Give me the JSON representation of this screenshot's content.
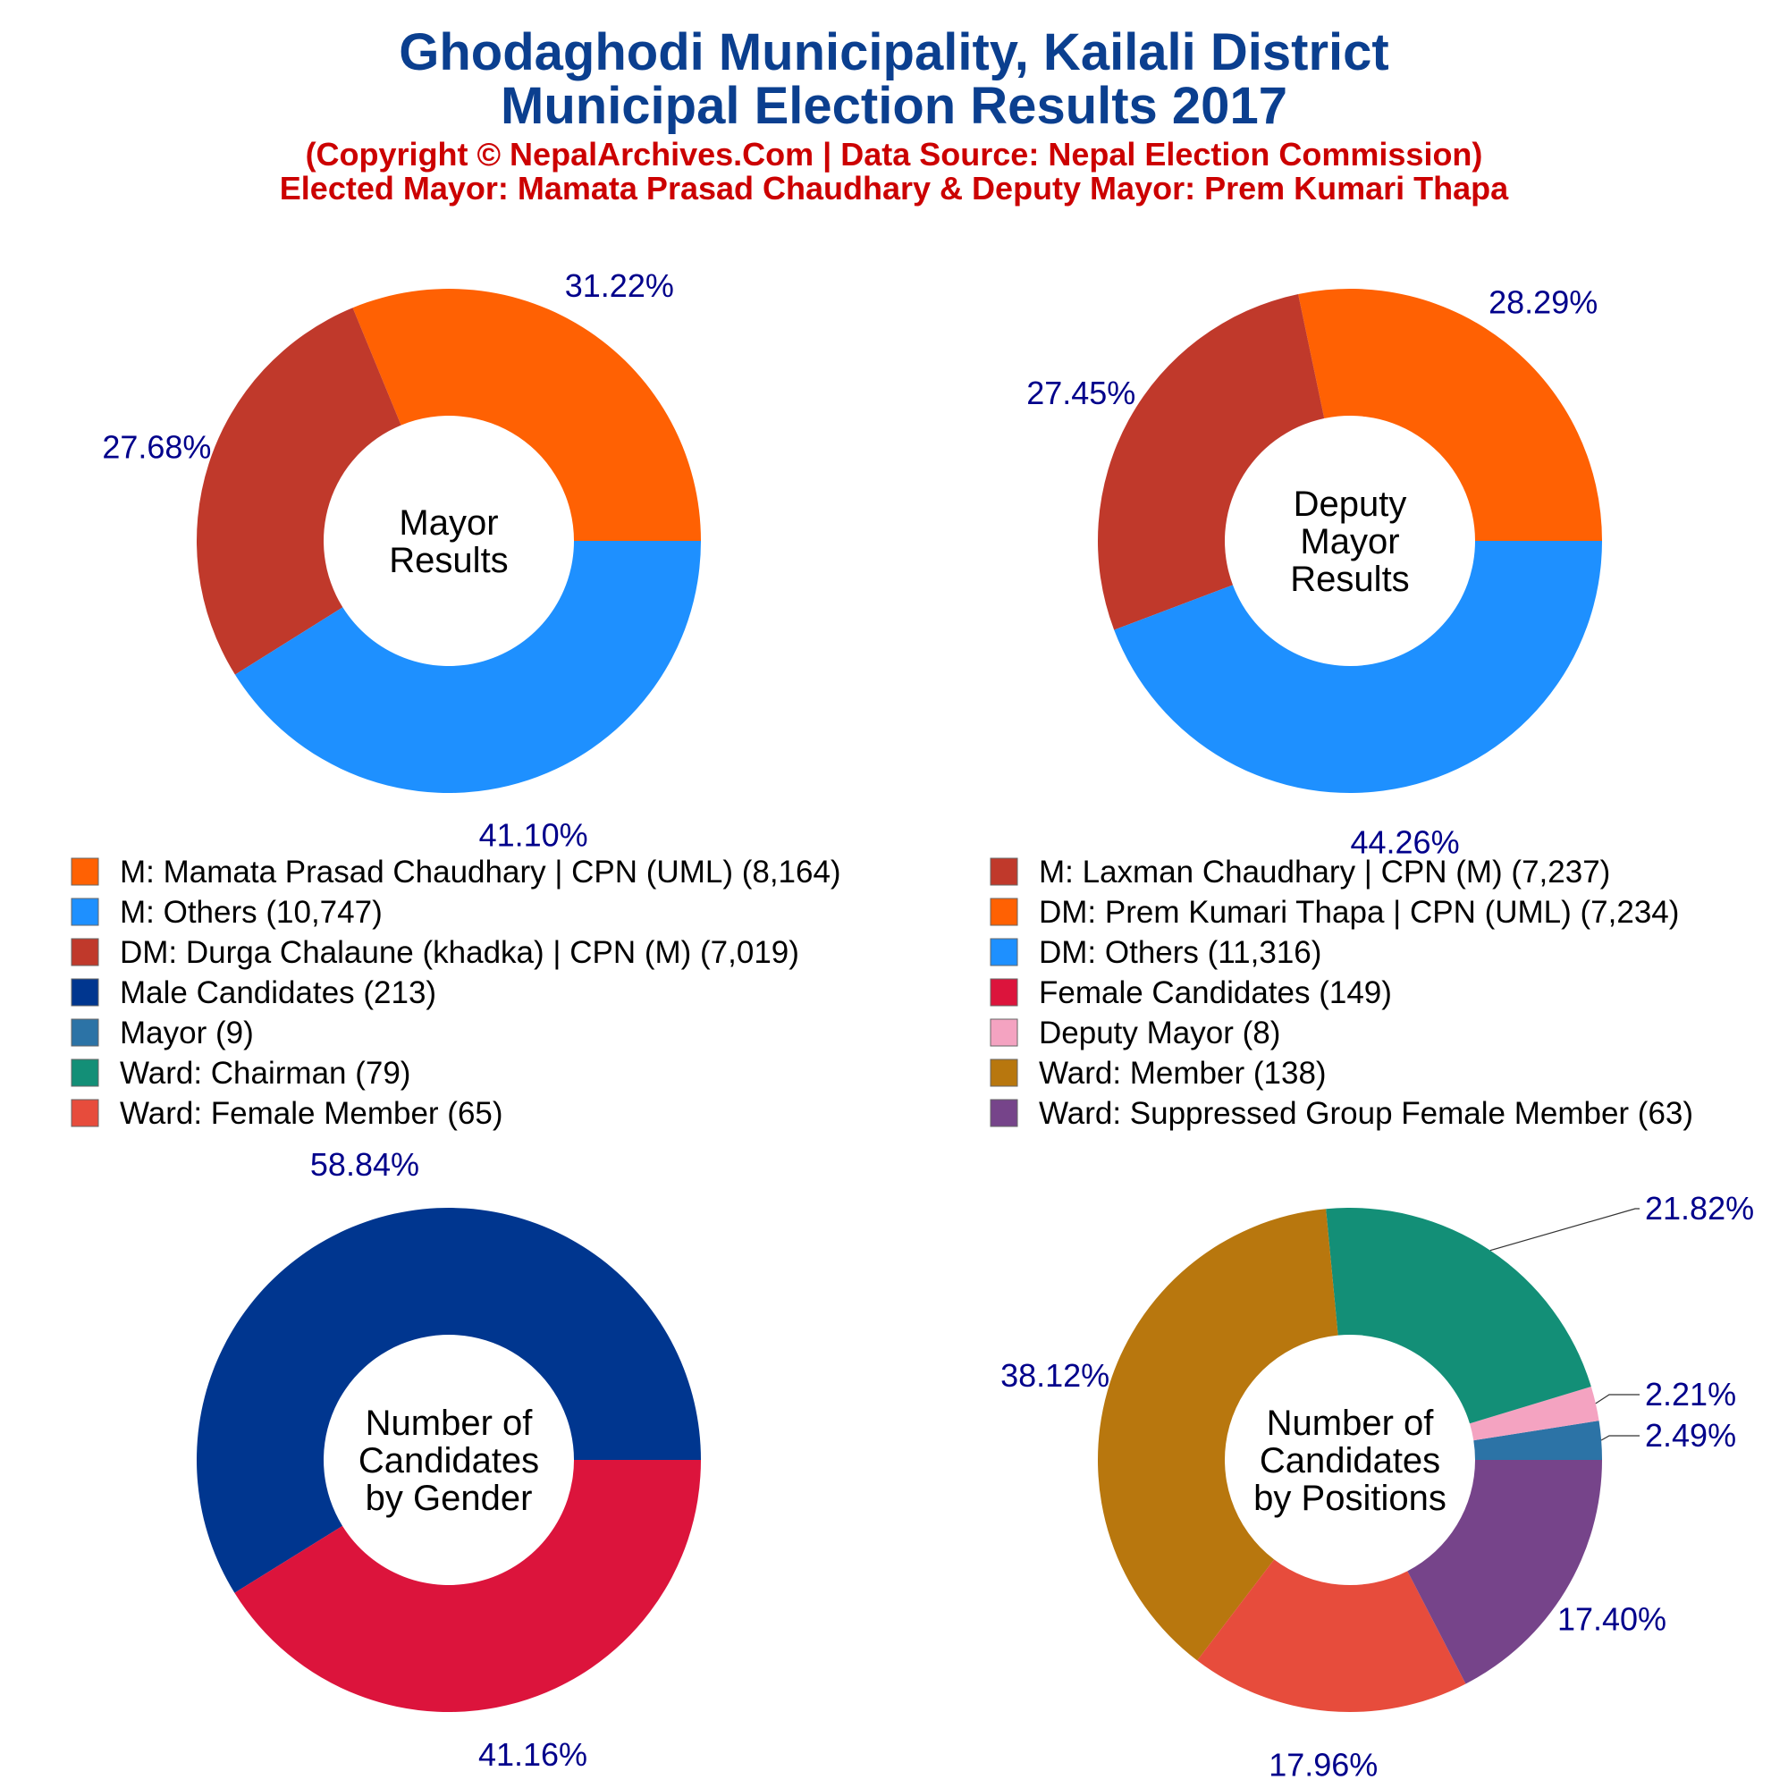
{
  "title_line1": "Ghodaghodi Municipality, Kailali District",
  "title_line2": "Municipal Election Results 2017",
  "subtitle_line1": "(Copyright © NepalArchives.Com | Data Source: Nepal Election Commission)",
  "subtitle_line2": "Elected Mayor: Mamata Prasad Chaudhary & Deputy Mayor: Prem Kumari Thapa",
  "colors": {
    "label_text": "#00008B",
    "title": "#0B3F8F",
    "subtitle": "#CC0000"
  },
  "chart_data": [
    {
      "type": "pie",
      "variant": "donut",
      "center_label": [
        "Mayor",
        "Results"
      ],
      "slices": [
        {
          "legend": "M: Mamata Prasad Chaudhary | CPN (UML) (8,164)",
          "value": 8164,
          "percent_label": "31.22%",
          "color": "#FF6103"
        },
        {
          "legend": "M: Others (10,747)",
          "value": 10747,
          "percent_label": "41.10%",
          "color": "#1E90FF"
        },
        {
          "legend": "M: Laxman Chaudhary | CPN (M) (7,237)",
          "value": 7237,
          "percent_label": "27.68%",
          "color": "#C0392B"
        }
      ]
    },
    {
      "type": "pie",
      "variant": "donut",
      "center_label": [
        "Deputy",
        "Mayor",
        "Results"
      ],
      "slices": [
        {
          "legend": "DM: Prem Kumari Thapa | CPN (UML) (7,234)",
          "value": 7234,
          "percent_label": "28.29%",
          "color": "#FF6103"
        },
        {
          "legend": "DM: Others (11,316)",
          "value": 11316,
          "percent_label": "44.26%",
          "color": "#1E90FF"
        },
        {
          "legend": "DM: Durga Chalaune (khadka) | CPN (M) (7,019)",
          "value": 7019,
          "percent_label": "27.45%",
          "color": "#C0392B"
        }
      ]
    },
    {
      "type": "pie",
      "variant": "donut",
      "center_label": [
        "Number of",
        "Candidates",
        "by Gender"
      ],
      "slices": [
        {
          "legend": "Male Candidates (213)",
          "value": 213,
          "percent_label": "58.84%",
          "color": "#00368F"
        },
        {
          "legend": "Female Candidates (149)",
          "value": 149,
          "percent_label": "41.16%",
          "color": "#DC143C"
        }
      ]
    },
    {
      "type": "pie",
      "variant": "donut",
      "center_label": [
        "Number of",
        "Candidates",
        "by Positions"
      ],
      "slices": [
        {
          "legend": "Mayor (9)",
          "value": 9,
          "percent_label": "2.49%",
          "color": "#2C73A6"
        },
        {
          "legend": "Deputy Mayor (8)",
          "value": 8,
          "percent_label": "2.21%",
          "color": "#F4A3C1"
        },
        {
          "legend": "Ward: Chairman (79)",
          "value": 79,
          "percent_label": "21.82%",
          "color": "#138F77"
        },
        {
          "legend": "Ward: Member (138)",
          "value": 138,
          "percent_label": "38.12%",
          "color": "#B8770E"
        },
        {
          "legend": "Ward: Female Member (65)",
          "value": 65,
          "percent_label": "17.96%",
          "color": "#E74C3C"
        },
        {
          "legend": "Ward: Suppressed Group Female Member (63)",
          "value": 63,
          "percent_label": "17.40%",
          "color": "#76448A"
        }
      ]
    }
  ],
  "legend": [
    {
      "text": "M: Mamata Prasad Chaudhary | CPN (UML) (8,164)",
      "color": "#FF6103"
    },
    {
      "text": "M: Laxman Chaudhary | CPN (M) (7,237)",
      "color": "#C0392B"
    },
    {
      "text": "M: Others (10,747)",
      "color": "#1E90FF"
    },
    {
      "text": "DM: Prem Kumari Thapa | CPN (UML) (7,234)",
      "color": "#FF6103"
    },
    {
      "text": "DM: Durga Chalaune (khadka) | CPN (M) (7,019)",
      "color": "#C0392B"
    },
    {
      "text": "DM: Others (11,316)",
      "color": "#1E90FF"
    },
    {
      "text": "Male Candidates (213)",
      "color": "#00368F"
    },
    {
      "text": "Female Candidates (149)",
      "color": "#DC143C"
    },
    {
      "text": "Mayor (9)",
      "color": "#2C73A6"
    },
    {
      "text": "Deputy Mayor (8)",
      "color": "#F4A3C1"
    },
    {
      "text": "Ward: Chairman (79)",
      "color": "#138F77"
    },
    {
      "text": "Ward: Member (138)",
      "color": "#B8770E"
    },
    {
      "text": "Ward: Female Member (65)",
      "color": "#E74C3C"
    },
    {
      "text": "Ward: Suppressed Group Female Member (63)",
      "color": "#76448A"
    }
  ]
}
